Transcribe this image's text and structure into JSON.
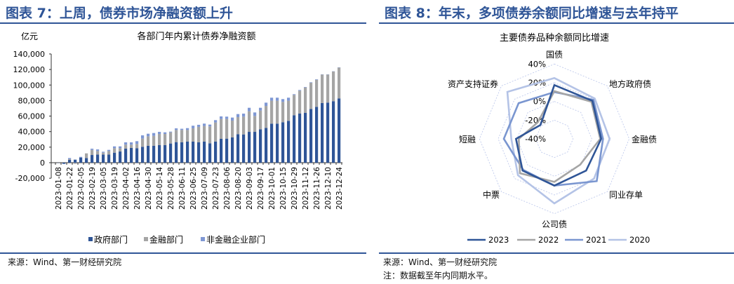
{
  "left": {
    "title": "图表 7：上周，债券市场净融资额上升",
    "source": "来源：Wind、第一财经研究院"
  },
  "right": {
    "title": "图表 8：年末，多项债券余额同比增速与去年持平",
    "source": "来源：Wind、第一财经研究院",
    "note": "注：数据截至年内同期水平。"
  },
  "chart_data": [
    {
      "type": "bar",
      "stacked": true,
      "title": "各部门年内累计债券净融资额",
      "ylabel": "亿元",
      "ylim": [
        -20000,
        140000
      ],
      "yticks": [
        "-20,000",
        "0",
        "20,000",
        "40,000",
        "60,000",
        "80,000",
        "100,000",
        "120,000",
        "140,000"
      ],
      "x_tick_labels": [
        "2023-01-08",
        "2023-01-22",
        "2023-02-05",
        "2023-02-19",
        "2023-03-05",
        "2023-03-19",
        "2023-04-02",
        "2023-04-16",
        "2023-04-30",
        "2023-05-14",
        "2023-05-28",
        "2023-06-11",
        "2023-06-25",
        "2023-07-09",
        "2023-07-23",
        "2023-08-06",
        "2023-08-20",
        "2023-09-03",
        "2023-09-17",
        "2023-10-01",
        "2023-10-15",
        "2023-10-29",
        "2023-11-12",
        "2023-11-26",
        "2023-12-10",
        "2023-12-24"
      ],
      "legend_position": "bottom",
      "series": [
        {
          "name": "政府部门",
          "color": "#2f5597",
          "values": [
            -300,
            -1500,
            3600,
            3900,
            6600,
            6000,
            9900,
            10500,
            10500,
            10500,
            12900,
            14400,
            18100,
            19000,
            18700,
            20500,
            21700,
            21700,
            22600,
            22600,
            24700,
            26500,
            26200,
            27100,
            27100,
            26200,
            27100,
            25000,
            27100,
            30700,
            31000,
            32500,
            36700,
            36400,
            39700,
            39700,
            43000,
            44800,
            50300,
            50300,
            52100,
            53900,
            61100,
            63200,
            64100,
            69200,
            71900,
            76800,
            77400,
            79200,
            82800
          ]
        },
        {
          "name": "金融部门",
          "color": "#a5a5a5",
          "values": [
            -300,
            0,
            900,
            -1500,
            0,
            6000,
            6600,
            4500,
            2400,
            4500,
            5700,
            4200,
            5100,
            4200,
            5400,
            10500,
            12300,
            12900,
            14400,
            14400,
            14400,
            15600,
            16000,
            15000,
            17200,
            19900,
            20200,
            21700,
            24700,
            25600,
            25300,
            21700,
            22000,
            22900,
            26500,
            20500,
            24100,
            28300,
            29500,
            29500,
            26200,
            25900,
            26200,
            29500,
            32800,
            33700,
            34900,
            36700,
            36100,
            38200,
            39700
          ]
        },
        {
          "name": "非金融企业部门",
          "color": "#7f98d4",
          "values": [
            0,
            0,
            1500,
            0,
            900,
            0,
            1500,
            2100,
            1200,
            1500,
            2400,
            2400,
            3000,
            3000,
            3600,
            4200,
            3300,
            3600,
            2700,
            2100,
            900,
            2100,
            1500,
            2400,
            3300,
            2700,
            3000,
            2400,
            3000,
            3300,
            3000,
            3900,
            3900,
            3900,
            4500,
            4500,
            3600,
            4200,
            3900,
            3900,
            3600,
            3900,
            900,
            900,
            600,
            600,
            600,
            300,
            300,
            300,
            300
          ]
        }
      ]
    },
    {
      "type": "radar",
      "title": "主要债券品种余额同比增速",
      "axes": [
        "国债",
        "地方政府债",
        "金融债",
        "同业存单",
        "公司债",
        "中票",
        "短融",
        "资产支持证券"
      ],
      "rlim": [
        -40,
        40
      ],
      "rticks": [
        "40%",
        "20%",
        "0%",
        "-20%",
        "-40%"
      ],
      "legend_position": "bottom",
      "series": [
        {
          "name": "2023",
          "color": "#2f5597",
          "values": [
            17.5,
            17.5,
            10,
            8,
            10,
            8,
            1,
            -19
          ]
        },
        {
          "name": "2022",
          "color": "#a5a5a5",
          "values": [
            11,
            16,
            9,
            -1,
            6,
            12,
            -2,
            -15
          ]
        },
        {
          "name": "2021",
          "color": "#7a96d0",
          "values": [
            10,
            19,
            12,
            24,
            10,
            7,
            14,
            14
          ]
        },
        {
          "name": "2020",
          "color": "#b4c3e6",
          "values": [
            25,
            21,
            19,
            20,
            29,
            15,
            6,
            31
          ]
        }
      ]
    }
  ]
}
